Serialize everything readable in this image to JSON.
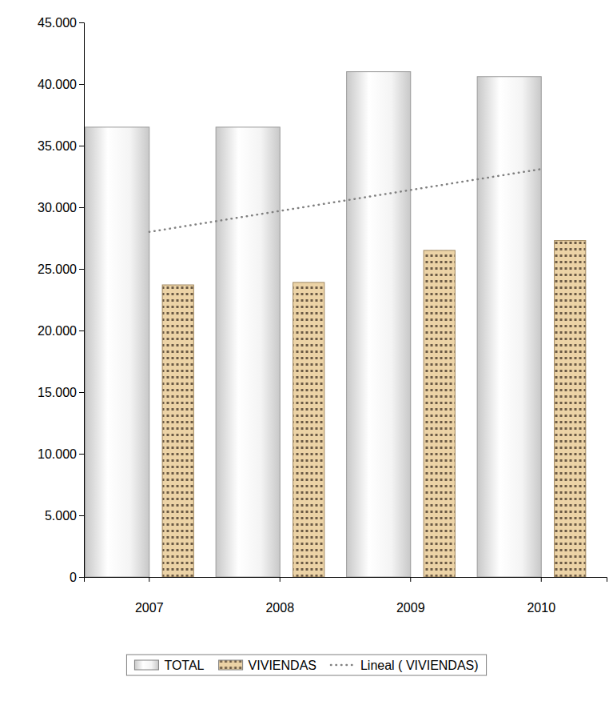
{
  "chart_data": {
    "type": "bar",
    "categories": [
      "2007",
      "2008",
      "2009",
      "2010"
    ],
    "series": [
      {
        "name": "TOTAL",
        "type": "bar",
        "color": "#c8c8c8",
        "values": [
          36500,
          36500,
          41000,
          40600
        ]
      },
      {
        "name": "VIVIENDAS",
        "type": "bar",
        "color": "#ecd3a6",
        "values": [
          23700,
          23900,
          26500,
          27300
        ]
      },
      {
        "name": "Lineal ( VIVIENDAS)",
        "type": "line",
        "color": "#808080",
        "line_style": "dotted",
        "values": [
          28000,
          29700,
          31400,
          33100
        ]
      }
    ],
    "ylim": [
      0,
      45000
    ],
    "yticks": [
      0,
      {
        "value": 5000,
        "label": "5.000"
      },
      {
        "value": 10000,
        "label": "10.000"
      },
      {
        "value": 15000,
        "label": "15.000"
      },
      {
        "value": 20000,
        "label": "20.000"
      },
      {
        "value": 25000,
        "label": "25.000"
      },
      {
        "value": 30000,
        "label": "30.000"
      },
      {
        "value": 35000,
        "label": "35.000"
      },
      {
        "value": 40000,
        "label": "40.000"
      },
      {
        "value": 45000,
        "label": "45.000"
      }
    ],
    "legend": "bottom"
  }
}
